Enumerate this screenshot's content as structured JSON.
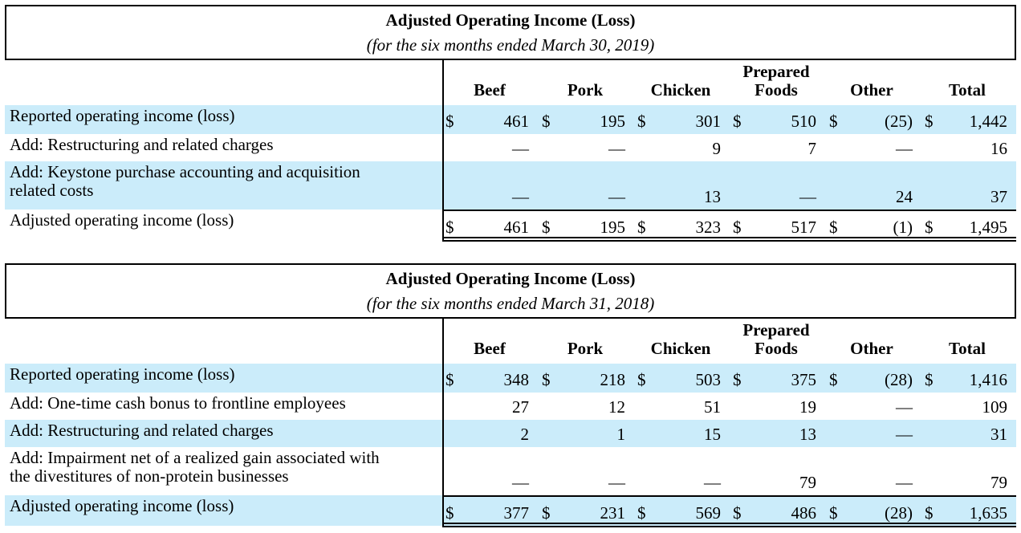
{
  "tables": [
    {
      "title": "Adjusted Operating Income (Loss)",
      "subtitle": "(for the six months ended March 30, 2019)",
      "columns": [
        {
          "line1": "",
          "line2": "Beef"
        },
        {
          "line1": "",
          "line2": "Pork"
        },
        {
          "line1": "",
          "line2": "Chicken"
        },
        {
          "line1": "Prepared",
          "line2": "Foods"
        },
        {
          "line1": "",
          "line2": "Other"
        },
        {
          "line1": "",
          "line2": "Total"
        }
      ],
      "rows": [
        {
          "label": [
            "Reported operating income (loss)"
          ],
          "dollar": true,
          "values": [
            "461",
            "195",
            "301",
            "510",
            "(25)",
            "1,442"
          ]
        },
        {
          "label": [
            "Add: Restructuring and related charges"
          ],
          "dollar": false,
          "values": [
            "—",
            "—",
            "9",
            "7",
            "—",
            "16"
          ]
        },
        {
          "label": [
            "Add: Keystone purchase accounting and acquisition",
            "related costs"
          ],
          "dollar": false,
          "values": [
            "—",
            "—",
            "13",
            "—",
            "24",
            "37"
          ]
        },
        {
          "label": [
            "Adjusted operating income (loss)"
          ],
          "dollar": true,
          "values": [
            "461",
            "195",
            "323",
            "517",
            "(1)",
            "1,495"
          ]
        }
      ]
    },
    {
      "title": "Adjusted Operating Income (Loss)",
      "subtitle": "(for the six months ended March 31, 2018)",
      "columns": [
        {
          "line1": "",
          "line2": "Beef"
        },
        {
          "line1": "",
          "line2": "Pork"
        },
        {
          "line1": "",
          "line2": "Chicken"
        },
        {
          "line1": "Prepared",
          "line2": "Foods"
        },
        {
          "line1": "",
          "line2": "Other"
        },
        {
          "line1": "",
          "line2": "Total"
        }
      ],
      "rows": [
        {
          "label": [
            "Reported operating income (loss)"
          ],
          "dollar": true,
          "values": [
            "348",
            "218",
            "503",
            "375",
            "(28)",
            "1,416"
          ]
        },
        {
          "label": [
            "Add: One-time cash bonus to frontline employees"
          ],
          "dollar": false,
          "values": [
            "27",
            "12",
            "51",
            "19",
            "—",
            "109"
          ]
        },
        {
          "label": [
            "Add: Restructuring and related charges"
          ],
          "dollar": false,
          "values": [
            "2",
            "1",
            "15",
            "13",
            "—",
            "31"
          ]
        },
        {
          "label": [
            "Add: Impairment net of a realized gain associated with",
            "the divestitures of non-protein businesses"
          ],
          "dollar": false,
          "values": [
            "—",
            "—",
            "—",
            "79",
            "—",
            "79"
          ]
        },
        {
          "label": [
            "Adjusted operating income (loss)"
          ],
          "dollar": true,
          "values": [
            "377",
            "231",
            "569",
            "486",
            "(28)",
            "1,635"
          ]
        }
      ]
    }
  ],
  "currency_symbol": "$",
  "colors": {
    "shade": "#cbecfa",
    "rule": "#000000"
  }
}
